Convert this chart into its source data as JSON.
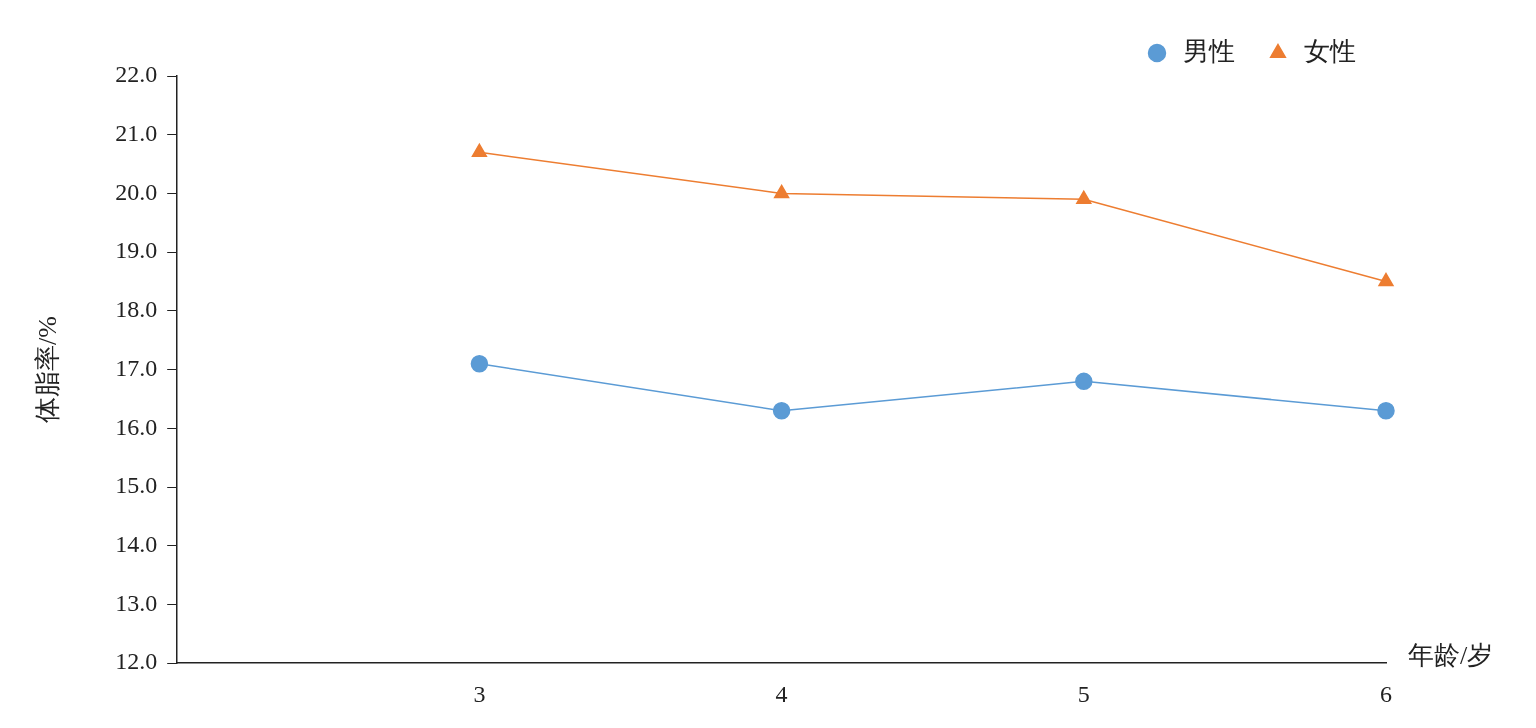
{
  "chart_data": {
    "type": "line",
    "xlabel": "年龄/岁",
    "ylabel": "体脂率/%",
    "x": [
      3,
      4,
      5,
      6
    ],
    "xlim": [
      2,
      6
    ],
    "xticks": [
      3,
      4,
      5,
      6
    ],
    "ylim": [
      12,
      22
    ],
    "yticks": [
      {
        "value": 12,
        "label": "12.0"
      },
      {
        "value": 13,
        "label": "13.0"
      },
      {
        "value": 14,
        "label": "14.0"
      },
      {
        "value": 15,
        "label": "15.0"
      },
      {
        "value": 16,
        "label": "16.0"
      },
      {
        "value": 17,
        "label": "17.0"
      },
      {
        "value": 18,
        "label": "18.0"
      },
      {
        "value": 19,
        "label": "19.0"
      },
      {
        "value": 20,
        "label": "20.0"
      },
      {
        "value": 21,
        "label": "21.0"
      },
      {
        "value": 22,
        "label": "22.0"
      }
    ],
    "series": [
      {
        "name": "男性",
        "color": "#5b9bd5",
        "marker": "circle",
        "values": [
          17.1,
          16.3,
          16.8,
          16.3
        ]
      },
      {
        "name": "女性",
        "color": "#ed7d31",
        "marker": "triangle",
        "values": [
          20.7,
          20.0,
          19.9,
          18.5
        ]
      }
    ],
    "grid": false,
    "legend": "top right",
    "line_style": "solid"
  }
}
